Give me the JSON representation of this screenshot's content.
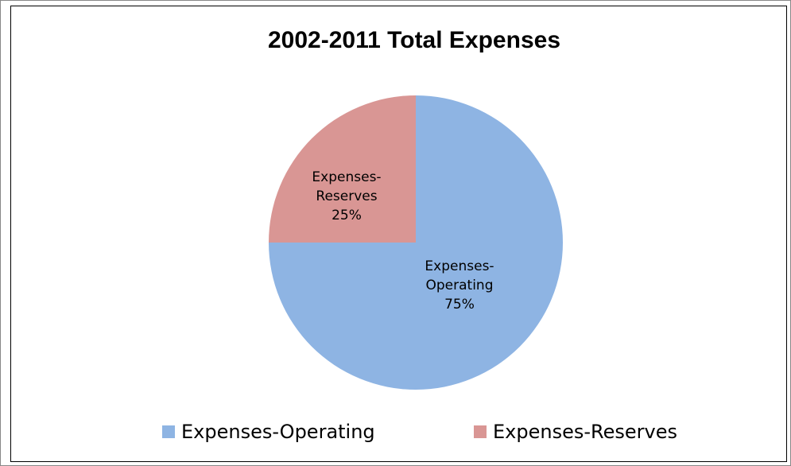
{
  "chart_data": {
    "type": "pie",
    "title": "2002-2011 Total Expenses",
    "slices": [
      {
        "name": "Expenses-Operating",
        "label_lines": [
          "Expenses-",
          "Operating",
          "75%"
        ],
        "value": 75,
        "color": "#8eb4e3"
      },
      {
        "name": "Expenses-Reserves",
        "label_lines": [
          "Expenses-",
          "Reserves",
          "25%"
        ],
        "value": 25,
        "color": "#d99694"
      }
    ],
    "legend": {
      "position": "bottom",
      "entries": [
        "Expenses-Operating",
        "Expenses-Reserves"
      ]
    }
  }
}
